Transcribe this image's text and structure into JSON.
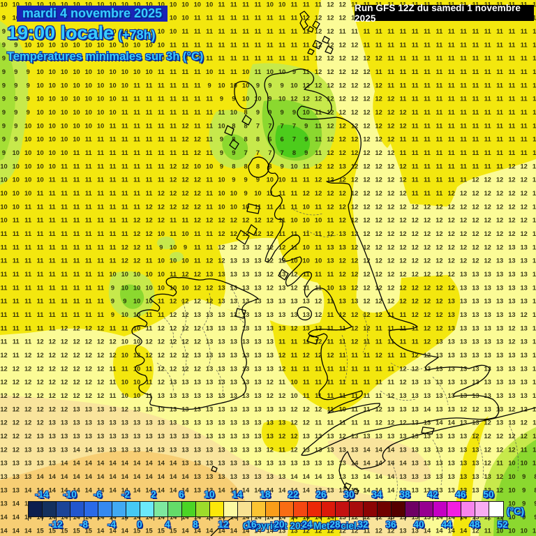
{
  "header": {
    "date_line": "mardi 4 novembre 2025",
    "time_line": "19:00 locale",
    "plus_hours": "(+78h)",
    "subtitle": "Températures minimales sur 3h (°C)"
  },
  "run_info": "Run GFS 12Z du samedi 1 novembre 2025",
  "copyright": "Copyright 2025 Meteociel.fr",
  "scale": {
    "unit_label": "(°C)",
    "labels_top": [
      "-14",
      "-10",
      "-6",
      "-2",
      "2",
      "6",
      "10",
      "14",
      "18",
      "22",
      "26",
      "30",
      "34",
      "38",
      "42",
      "46",
      "50"
    ],
    "labels_bottom": [
      "-12",
      "-8",
      "-4",
      "0",
      "4",
      "8",
      "12",
      "16",
      "20",
      "24",
      "28",
      "32",
      "36",
      "40",
      "44",
      "48",
      "52"
    ],
    "swatch_colors": [
      "#0C1E4E",
      "#14305E",
      "#1B4498",
      "#2256CE",
      "#2A6AE8",
      "#3589F0",
      "#41A9F3",
      "#46C9F5",
      "#6BE9FA",
      "#7EE89F",
      "#63DC69",
      "#4BD425",
      "#9DDC2B",
      "#FCE809",
      "#FCF9A2",
      "#F9E292",
      "#FBC433",
      "#F99D19",
      "#F96C13",
      "#F54711",
      "#EC2807",
      "#DC1A0A",
      "#C41111",
      "#A80C0C",
      "#8C0404",
      "#700000",
      "#540000",
      "#6E0064",
      "#960090",
      "#C400C4",
      "#F31EE0",
      "#F884EC",
      "#F8ACF2",
      "#FFFFFF"
    ]
  },
  "map": {
    "value_unit": "°C",
    "grid_rows": [
      "10 10 10 10 10 10 10 10 10 10 10 10 10 10 10 10 10 10 11 11 11 11 10 10 11 11 11 12 12 11 11 11 11 11 11 11 11 11 11 11 11 11 11 11 11",
      "9 10 10 10 10 10 10 10 10 10 10 10 10 10 10 10 11 11 11 11 11 11 11 11 11 12 12 12 12 11 11 11 11 11 11 11 11 11 11 11 11 11 11 11 11",
      "9 10 10 10 10 10 10 10 10 10 10 10 10 10 10 11 11 11 11 11 11 11 11 11 11 11 12 12 11 11 11 11 11 11 11 11 11 11 11 11 11 11 11 11 11",
      "9 9 10 10 10 10 10 10 10 10 10 10 10 10 11 11 11 11 11 11 11 11 11 11 11 11 12 12 12 12 11 11 11 11 11 11 11 11 11 11 11 11 11 11 11",
      "9 9 10 10 10 10 10 10 10 10 10 10 10 10 11 11 11 11 11 11 11 11 11 11 11 11 12 12 12 12 12 12 11 11 11 11 11 11 11 11 11 11 11 11 11",
      "9 9 9 10 10 10 10 10 10 10 10 10 10 11 11 11 11 10 11 11 10 11 10 10 9 11 12 12 12 12 12 11 11 11 11 11 11 11 11 11 11 11 11 11 11",
      "9 9 9 10 10 10 10 10 10 10 10 11 11 11 11 11 11 9 10 10 10 9 9 9 10 12 12 12 12 12 12 12 11 11 11 11 11 11 11 11 11 11 11 11 11",
      "9 9 9 10 10 10 10 10 10 10 11 11 11 11 11 11 11 11 9 9 10 10 9 10 12 12 12 12 12 12 12 12 12 11 11 11 11 11 11 11 11 11 11 11 11",
      "9 9 9 10 10 10 10 10 10 10 11 11 11 11 11 11 11 11 11 10 8 9 9 9 9 10 11 12 12 12 12 12 12 12 11 11 11 11 11 11 11 11 11 11 11",
      "9 9 10 10 10 10 10 10 10 11 11 11 11 11 11 12 11 11 10 8 8 7 7 7 7 9 11 12 12 12 12 12 12 12 11 11 11 11 11 11 11 11 11 11 11",
      "9 9 10 10 10 10 10 11 11 11 11 11 11 11 11 12 12 11 9 8 8 8 6 6 7 9 11 12 12 12 12 12 12 11 11 11 11 11 11 11 11 11 11 11 11",
      "9 10 10 10 10 10 11 11 11 11 11 11 11 11 11 11 12 11 9 9 7 7 7 7 8 9 11 12 12 12 12 12 12 11 11 11 11 11 11 11 11 11 11 11 11",
      "10 10 10 10 10 11 11 11 11 11 11 11 11 11 12 12 10 10 9 8 8 8 8 9 10 11 12 12 13 12 12 12 12 12 11 11 11 11 11 11 11 11 12 12 12",
      "10 10 10 10 11 11 11 11 11 11 11 11 11 11 12 12 12 11 10 9 9 9 10 10 11 11 12 12 12 12 12 12 12 12 11 11 11 11 11 12 12 12 12 12 12",
      "10 10 10 11 11 11 11 11 11 11 11 11 11 12 12 12 12 11 10 10 9 10 11 11 11 12 12 12 12 12 12 12 12 12 11 11 11 12 12 12 12 12 12 12 12",
      "10 10 11 11 11 11 11 11 11 11 11 11 12 12 12 12 12 11 10 10 10 11 11 11 11 10 11 12 12 12 12 12 12 12 12 12 12 12 12 12 12 12 12 12 12",
      "10 11 11 11 11 11 11 11 11 11 11 12 12 12 11 11 12 12 12 12 12 12 12 11 10 10 10 11 12 12 12 12 12 12 12 12 12 12 12 12 12 12 12 12 12",
      "11 11 11 11 11 11 11 11 11 11 11 12 12 10 11 10 11 11 12 12 12 12 12 11 11 11 11 12 13 12 12 12 12 12 12 12 12 12 12 12 12 12 12 12 12",
      "11 11 11 11 11 11 11 11 11 11 12 12 11 9 10 9 11 11 12 12 13 12 12 12 11 10 11 13 13 12 12 12 12 12 12 12 12 12 12 12 12 12 13 13 13",
      "11 11 11 11 11 11 11 11 11 11 12 12 11 10 10 10 11 12 12 13 13 13 12 12 10 10 10 13 12 12 12 12 12 12 12 12 12 12 12 12 12 13 13 13 13",
      "11 11 11 11 11 11 11 11 11 10 10 10 10 10 11 12 12 13 13 13 13 13 12 13 12 11 11 11 12 12 12 12 12 12 12 12 12 12 13 13 13 13 13 13 13",
      "11 11 11 11 11 11 11 11 11 9 10 10 10 10 10 10 12 12 13 13 13 13 12 13 12 11 11 10 13 12 12 12 12 12 12 12 12 12 13 13 13 13 13 13 13",
      "11 11 11 11 11 11 11 11 11 9 9 10 10 11 12 12 12 12 13 13 13 13 13 13 13 13 12 11 13 13 12 12 12 12 12 12 12 13 13 13 13 13 13 13 13",
      "11 11 11 11 11 11 11 11 11 9 10 10 11 11 12 12 13 13 13 13 13 13 13 13 13 13 12 11 12 12 12 12 11 11 12 12 12 13 13 13 13 13 13 12 12",
      "11 11 11 11 11 12 12 12 12 11 11 10 11 12 12 12 12 13 13 13 13 13 13 13 12 13 13 11 11 12 12 11 11 11 11 12 12 13 13 13 13 13 12 13 13",
      "11 11 11 12 12 12 12 12 12 12 10 10 12 12 12 12 12 13 13 13 13 13 13 11 11 11 12 11 11 12 11 11 11 11 11 12 13 13 13 13 13 13 12 13 13",
      "12 11 12 12 12 12 12 12 12 12 10 12 12 12 12 12 13 13 13 13 13 13 13 12 11 12 12 12 11 11 11 12 11 11 12 12 13 13 13 13 13 13 13 13 13",
      "12 12 12 12 12 12 12 12 12 11 11 10 11 12 12 12 12 13 13 13 13 13 13 12 11 11 11 11 11 11 11 11 11 12 12 13 13 13 13 13 13 13 13 13 13",
      "12 12 12 12 12 12 12 12 12 11 10 10 11 12 13 13 13 13 13 13 13 13 12 11 10 11 11 11 11 11 11 11 11 12 13 13 13 13 13 13 13 13 13 13 13",
      "12 12 12 12 12 12 12 12 12 11 10 10 11 13 13 13 13 13 13 13 13 13 12 12 10 11 11 11 11 11 11 11 12 13 13 13 13 13 13 13 13 13 13 13 13",
      "12 12 12 12 12 12 13 13 13 13 12 13 13 13 13 13 13 13 13 13 13 13 13 13 12 12 12 11 10 11 11 12 13 13 13 14 13 13 12 12 13 13 12 12 12",
      "12 12 12 12 13 13 13 13 13 13 13 13 13 13 13 13 13 13 13 13 13 13 13 13 12 12 11 11 11 11 11 12 12 12 13 13 14 14 13 13 12 13 13 12 11",
      "12 12 12 13 13 13 13 13 13 13 13 13 13 13 13 13 13 13 13 13 13 13 13 12 12 13 13 13 12 13 13 13 13 13 13 13 13 13 13 12 12 12 12 12 11",
      "12 12 13 13 13 13 14 14 13 13 13 13 14 13 13 13 13 13 13 13 13 13 12 11 12 13 13 13 13 13 14 14 14 13 13 13 13 13 13 13 12 12 12 11 11",
      "13 13 13 13 13 14 14 14 14 14 14 14 14 14 14 13 13 13 13 13 13 13 13 13 13 13 13 13 13 14 14 14 14 14 13 13 13 13 13 13 12 11 10 10 10",
      "13 13 13 14 14 14 14 14 14 14 14 14 14 14 14 14 13 13 13 13 13 13 13 13 14 14 14 13 13 13 14 14 14 13 13 13 13 13 13 13 13 12 10 9 8",
      "13 13 14 14 14 14 14 14 14 14 14 14 14 14 14 14 13 13 14 14 14 14 14 14 14 14 13 13 13 13 14 14 14 13 13 13 13 13 13 13 13 12 10 9 8",
      "13 14 14 14 14 14 14 14 14 14 14 14 14 14 14 14 14 14 14 14 14 14 14 14 14 14 13 13 13 13 14 14 14 13 13 13 13 13 13 13 12 11 10 9 9",
      "14 14 14 14 14 14 14 14 14 14 14 14 14 14 14 14 14 14 14 14 14 14 14 14 14 14 14 14 13 12 12 12 13 13 13 13 14 14 14 13 12 11 10 9 9",
      "14 14 14 15 15 15 15 15 14 14 14 15 15 15 15 14 14 14 14 14 14 14 14 13 13 12 12 12 12 12 11 12 12 13 13 14 14 14 14 12 11 10 10 10 10"
    ]
  },
  "colors": {
    "bright_yellow": "#F3E70E",
    "pale_yellow": "#FBFB96",
    "cream": "#F9E49C",
    "tan": "#F7CE74",
    "green_light": "#C7E94B",
    "green_mid": "#8BD82F",
    "green_deep": "#4CCC1C",
    "band_blue": "#1B23B8",
    "header_text_cyan": "#38CDFF",
    "run_box_bg": "#000000",
    "run_box_text": "#FFFFFF",
    "number_color": "#1C1C05"
  }
}
